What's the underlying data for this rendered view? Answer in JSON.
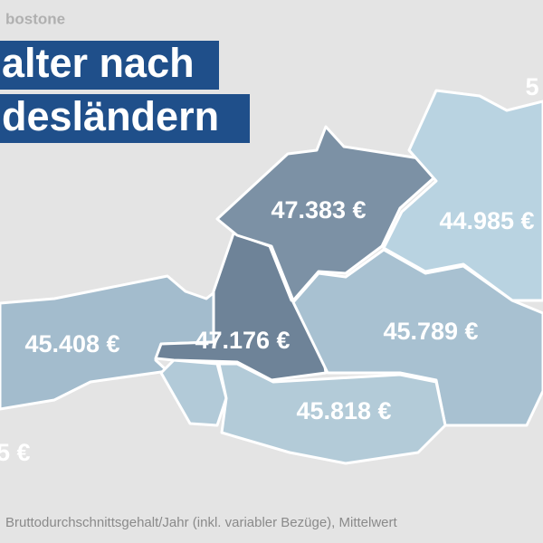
{
  "header": {
    "source": "bostone",
    "title_lines": [
      "alter nach",
      "desländern"
    ]
  },
  "regions": [
    {
      "label": "47.383 €"
    },
    {
      "label": "44.985 €"
    },
    {
      "label": "45.408 €"
    },
    {
      "label": "47.176 €"
    },
    {
      "label": "45.789 €"
    },
    {
      "label": "45.818 €"
    }
  ],
  "partial_labels": [
    "5",
    "5 €"
  ],
  "footnote": "Bruttodurchschnittsgehalt/Jahr (inkl. variabler Bezüge), Mittelwert"
}
